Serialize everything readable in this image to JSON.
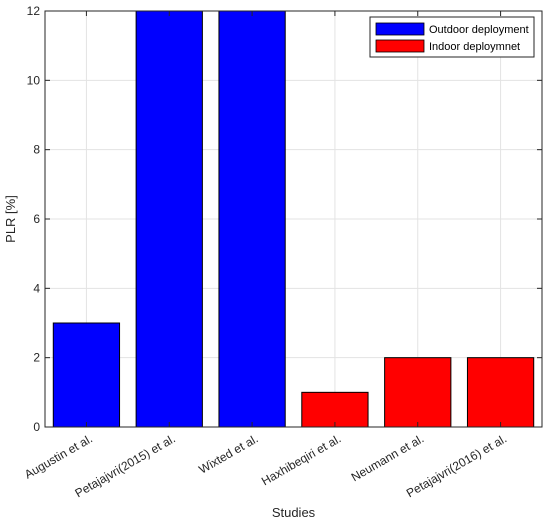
{
  "chart_data": {
    "type": "bar",
    "xlabel": "Studies",
    "ylabel": "PLR [%]",
    "ylim": [
      0,
      12
    ],
    "yticks": [
      0,
      2,
      4,
      6,
      8,
      10,
      12
    ],
    "grid": true,
    "legend_position": "top-right",
    "categories": [
      "Augustin et al.",
      "Petajajvri(2015) et al.",
      "Wixted et al.",
      "Haxhibeqiri et al.",
      "Neumann et al.",
      "Petajajvri(2016) et al."
    ],
    "values": [
      3,
      12,
      12,
      1,
      2,
      2
    ],
    "groups": [
      "Outdoor deployment",
      "Outdoor deployment",
      "Outdoor deployment",
      "Indoor deploymnet",
      "Indoor deploymnet",
      "Indoor deploymnet"
    ],
    "legend": [
      {
        "label": "Outdoor deployment",
        "color": "#0000ff"
      },
      {
        "label": "Indoor deploymnet",
        "color": "#ff0000"
      }
    ]
  }
}
